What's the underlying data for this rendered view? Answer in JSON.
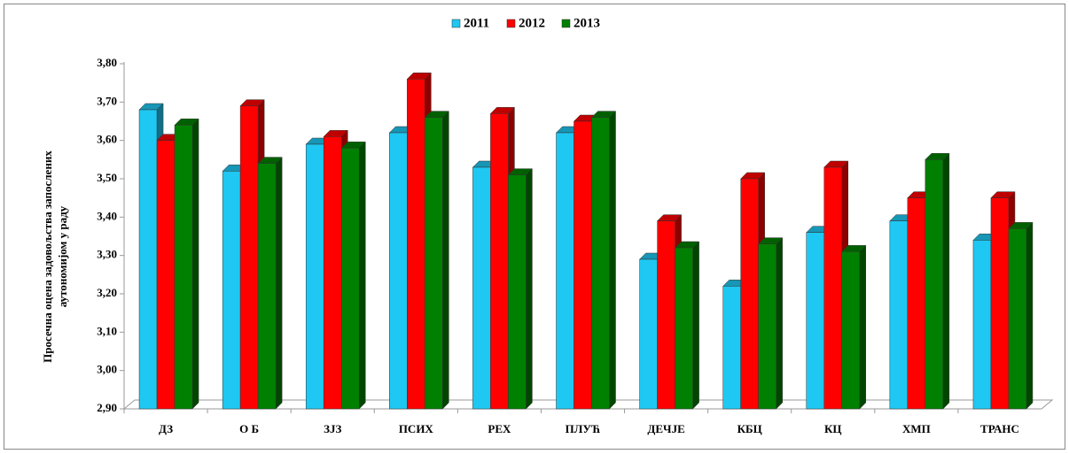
{
  "chart_data": {
    "type": "bar3d",
    "ylabel": [
      "Просечна оцена задовољства запослених",
      "аутономијом у раду"
    ],
    "categories": [
      "ДЗ",
      "О Б",
      "ЗЈЗ",
      "ПСИХ",
      "РЕХ",
      "ПЛУЋ",
      "ДЕЧЈЕ",
      "КБЦ",
      "КЦ",
      "ХМП",
      "ТРАНС"
    ],
    "series": [
      {
        "name": "2011",
        "color": "#1ec8f2",
        "values": [
          3.68,
          3.52,
          3.59,
          3.62,
          3.53,
          3.62,
          3.29,
          3.22,
          3.36,
          3.39,
          3.34
        ]
      },
      {
        "name": "2012",
        "color": "#ff0000",
        "values": [
          3.6,
          3.69,
          3.61,
          3.76,
          3.67,
          3.65,
          3.39,
          3.5,
          3.53,
          3.45,
          3.45
        ]
      },
      {
        "name": "2013",
        "color": "#008000",
        "values": [
          3.64,
          3.54,
          3.58,
          3.66,
          3.51,
          3.66,
          3.32,
          3.33,
          3.31,
          3.55,
          3.37
        ]
      }
    ],
    "ylim": [
      2.9,
      3.8
    ],
    "yticks": [
      {
        "value": 2.9,
        "label": "2,90"
      },
      {
        "value": 3.0,
        "label": "3,00"
      },
      {
        "value": 3.1,
        "label": "3,10"
      },
      {
        "value": 3.2,
        "label": "3,20"
      },
      {
        "value": 3.3,
        "label": "3,30"
      },
      {
        "value": 3.4,
        "label": "3,40"
      },
      {
        "value": 3.5,
        "label": "3,50"
      },
      {
        "value": 3.6,
        "label": "3,60"
      },
      {
        "value": 3.7,
        "label": "3,70"
      },
      {
        "value": 3.8,
        "label": "3,80"
      }
    ],
    "legend": "top",
    "grid": false
  }
}
